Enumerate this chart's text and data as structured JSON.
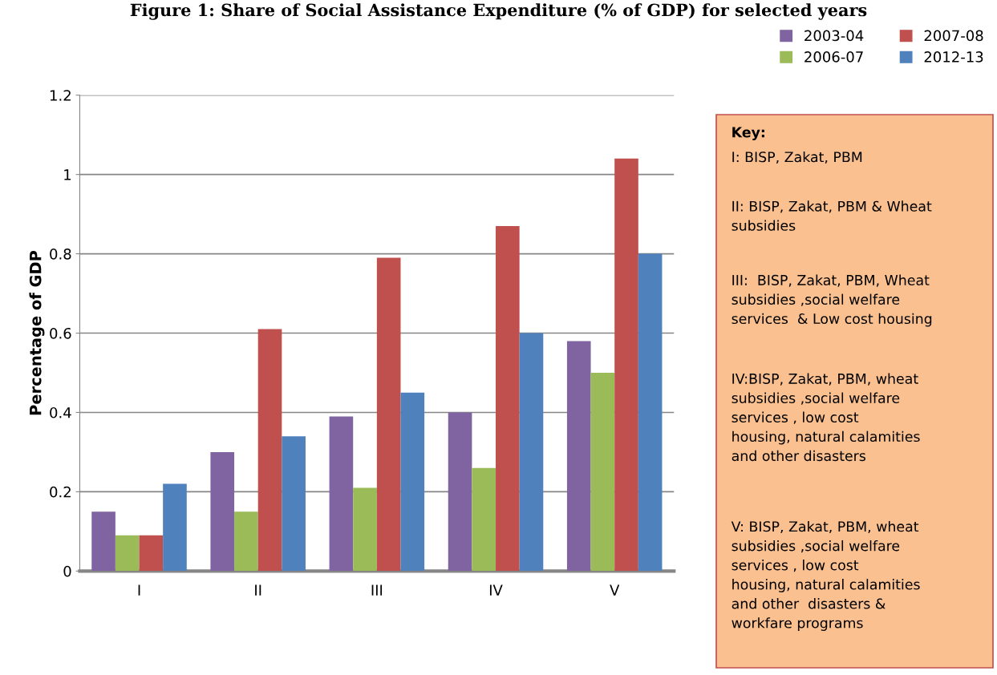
{
  "chart_data": {
    "type": "bar",
    "title": "Figure 1: Share of Social Assistance Expenditure (% of GDP) for selected years",
    "ylabel": "Percentage of GDP",
    "categories": [
      "I",
      "II",
      "III",
      "IV",
      "V"
    ],
    "series": [
      {
        "name": "2003-04",
        "color": "#8064a2",
        "values": [
          0.15,
          0.3,
          0.39,
          0.4,
          0.58
        ]
      },
      {
        "name": "2006-07",
        "color": "#9bbb59",
        "values": [
          0.09,
          0.15,
          0.21,
          0.26,
          0.5
        ]
      },
      {
        "name": "2007-08",
        "color": "#c0504d",
        "values": [
          0.09,
          0.61,
          0.79,
          0.87,
          1.04
        ]
      },
      {
        "name": "2012-13",
        "color": "#4f81bd",
        "values": [
          0.22,
          0.34,
          0.45,
          0.6,
          0.8
        ]
      }
    ],
    "ylim": [
      0,
      1.2
    ],
    "yticks": [
      {
        "value": 0,
        "label": "0"
      },
      0.2,
      0.4,
      0.6,
      0.8,
      {
        "value": 1,
        "label": "1"
      },
      1.2
    ],
    "grid": "y",
    "legend": "top right",
    "annotations": [
      "Key:",
      "I: BISP, Zakat, PBM",
      "II: BISP, Zakat, PBM & Wheat\nsubsidies",
      "III:  BISP, Zakat, PBM, Wheat\nsubsidies ,social welfare\nservices  & Low cost housing",
      "IV:BISP, Zakat, PBM, wheat\nsubsidies ,social welfare\nservices , low cost\nhousing, natural calamities\nand other disasters",
      "V: BISP, Zakat, PBM, wheat\nsubsidies ,social welfare\nservices , low cost\nhousing, natural calamities\nand other  disasters &\nworkfare programs"
    ]
  }
}
